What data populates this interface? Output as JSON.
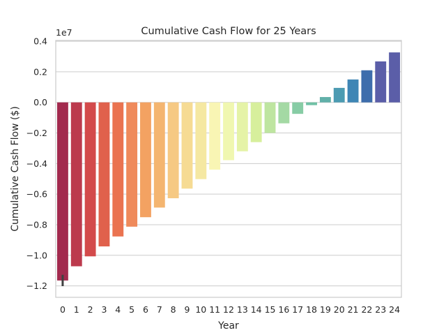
{
  "chart_data": {
    "type": "bar",
    "title": "Cumulative Cash Flow for 25 Years",
    "xlabel": "Year",
    "ylabel": "Cumulative Cash Flow ($)",
    "y_offset_label": "1e7",
    "y_scale": 10000000,
    "ylim": [
      -1.275,
      0.405
    ],
    "yticks": [
      0.4,
      0.2,
      0.0,
      -0.2,
      -0.4,
      -0.6,
      -0.8,
      -1.0,
      -1.2
    ],
    "ytick_labels": [
      "0.4",
      "0.2",
      "0.0",
      "−0.2",
      "−0.4",
      "−0.6",
      "−0.8",
      "−1.0",
      "−1.2"
    ],
    "grid": true,
    "categories": [
      "0",
      "1",
      "2",
      "3",
      "4",
      "5",
      "6",
      "7",
      "8",
      "9",
      "10",
      "11",
      "12",
      "13",
      "14",
      "15",
      "16",
      "17",
      "18",
      "19",
      "20",
      "21",
      "22",
      "23",
      "24"
    ],
    "values": [
      -1.165,
      -1.072,
      -1.007,
      -0.942,
      -0.877,
      -0.813,
      -0.751,
      -0.688,
      -0.627,
      -0.564,
      -0.502,
      -0.44,
      -0.378,
      -0.32,
      -0.26,
      -0.2,
      -0.137,
      -0.075,
      -0.018,
      0.035,
      0.095,
      0.15,
      0.21,
      0.268,
      0.327
    ],
    "error_bar": {
      "category": "0",
      "low": -1.202,
      "high": -1.128
    },
    "colors": [
      "#a22a4e",
      "#bc3a4d",
      "#d34a4b",
      "#e0614c",
      "#ea7350",
      "#ef8a5b",
      "#f3a262",
      "#f4b570",
      "#f6c983",
      "#f6db93",
      "#f5e8a2",
      "#f9f5b4",
      "#f0f7b0",
      "#e5f3a7",
      "#d7ef9c",
      "#bee5a0",
      "#a4d9a4",
      "#87cca5",
      "#70c1a5",
      "#61b0a9",
      "#4c9bb2",
      "#3f86b5",
      "#3e6dac",
      "#5b5ea8"
    ],
    "colors_last": "#5b5ea8"
  }
}
